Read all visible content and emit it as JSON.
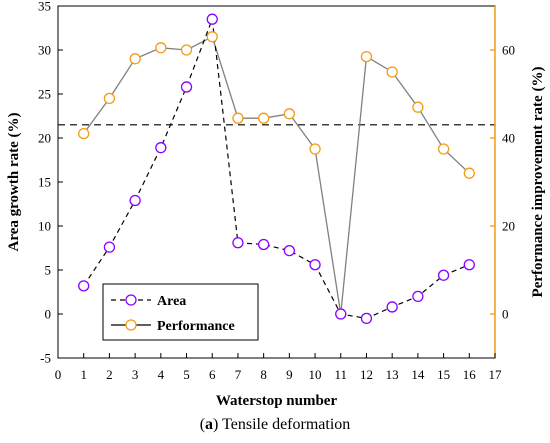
{
  "caption": {
    "letter_open": "(",
    "letter": "a",
    "letter_close": ")",
    "text": " Tensile deformation"
  },
  "chart_data": {
    "type": "line",
    "title": "",
    "xlabel": "Waterstop  number",
    "ylabel_left": "Area growth rate (%)",
    "ylabel_right": "Performance improvement rate (%)",
    "xlim": [
      0,
      17
    ],
    "ylim_left": [
      -5,
      35
    ],
    "ylim_right": [
      -10,
      70
    ],
    "x_ticks": [
      0,
      1,
      2,
      3,
      4,
      5,
      6,
      7,
      8,
      9,
      10,
      11,
      12,
      13,
      14,
      15,
      16,
      17
    ],
    "y_ticks_left": [
      -5,
      0,
      5,
      10,
      15,
      20,
      25,
      30,
      35
    ],
    "y_ticks_right": [
      0,
      20,
      40,
      60
    ],
    "reference_line_left": 21.5,
    "legend_position": "bottom-left",
    "x": [
      1,
      2,
      3,
      4,
      5,
      6,
      7,
      8,
      9,
      10,
      11,
      12,
      13,
      14,
      15,
      16
    ],
    "series": [
      {
        "name": "Area",
        "axis": "left",
        "style": "dashed",
        "color": "#8b00ff",
        "values": [
          3.2,
          7.6,
          12.9,
          18.9,
          25.8,
          33.5,
          8.1,
          7.9,
          7.2,
          5.6,
          0.0,
          -0.5,
          0.8,
          2.0,
          4.4,
          5.6
        ]
      },
      {
        "name": "Performance",
        "axis": "right",
        "style": "solid",
        "color": "#f39c12",
        "values": [
          41,
          49,
          58,
          60.5,
          60,
          63,
          44.5,
          44.5,
          45.5,
          37.5,
          0,
          58.5,
          55,
          47,
          37.5,
          32
        ]
      }
    ]
  },
  "colors": {
    "left_axis": "#000000",
    "right_axis": "#f39c12",
    "area_marker": "#8b00ff",
    "performance_marker": "#f39c12",
    "performance_line": "#808080"
  }
}
